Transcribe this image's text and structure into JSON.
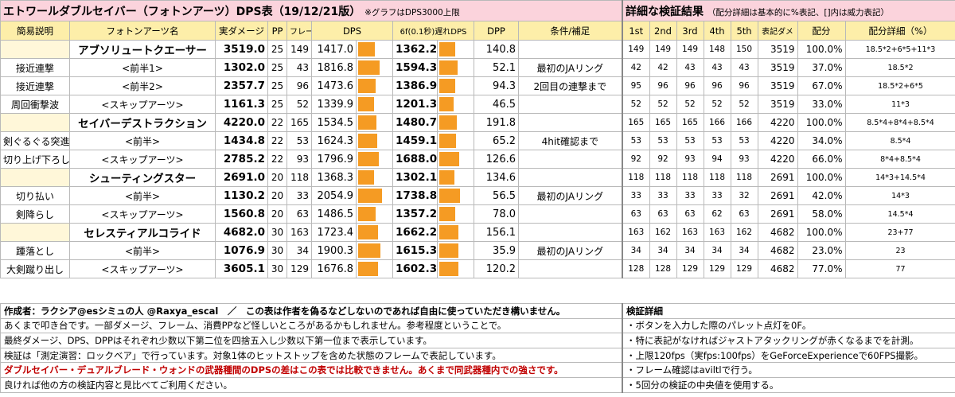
{
  "title": "エトワールダブルセイバー（フォトンアーツ）DPS表（19/12/21版）",
  "title_note": "※グラフはDPS3000上限",
  "side_title": "詳細な検証結果",
  "side_note": "（配分詳細は基本的に%表記、[]内は威力表記）",
  "headers": [
    "簡易説明",
    "フォトンアーツ名",
    "実ダメージ",
    "PP",
    "フレーム",
    "DPS",
    "6f(0.1秒)遅れDPS",
    "DPP",
    "条件/補足"
  ],
  "side_headers": [
    "1st",
    "2nd",
    "3rd",
    "4th",
    "5th",
    "表記ダメ",
    "配分",
    "配分詳細（%）"
  ],
  "bar_color": "#f59b23",
  "bar_cap": 3000,
  "rows": [
    {
      "desc": "",
      "name": "アブソリュートクエーサー",
      "main": true,
      "dmg": "3519.0",
      "pp": "25",
      "frame": "149",
      "dps": "1417.0",
      "dps_val": 1417.0,
      "dps6": "1362.2",
      "dps6_val": 1362.2,
      "dpp": "140.8",
      "note": "",
      "t1": "149",
      "t2": "149",
      "t3": "149",
      "t4": "148",
      "t5": "150",
      "disp": "3519",
      "ratio": "100.0%",
      "detail": "18.5*2+6*5+11*3"
    },
    {
      "desc": "接近連撃",
      "name": "<前半1>",
      "main": false,
      "dmg": "1302.0",
      "pp": "25",
      "frame": "43",
      "dps": "1816.8",
      "dps_val": 1816.8,
      "dps6": "1594.3",
      "dps6_val": 1594.3,
      "dpp": "52.1",
      "note": "最初のJAリング",
      "t1": "42",
      "t2": "42",
      "t3": "43",
      "t4": "43",
      "t5": "43",
      "disp": "3519",
      "ratio": "37.0%",
      "detail": "18.5*2"
    },
    {
      "desc": "接近連撃",
      "name": "<前半2>",
      "main": false,
      "dmg": "2357.7",
      "pp": "25",
      "frame": "96",
      "dps": "1473.6",
      "dps_val": 1473.6,
      "dps6": "1386.9",
      "dps6_val": 1386.9,
      "dpp": "94.3",
      "note": "2回目の連撃まで",
      "t1": "95",
      "t2": "96",
      "t3": "96",
      "t4": "96",
      "t5": "96",
      "disp": "3519",
      "ratio": "67.0%",
      "detail": "18.5*2+6*5"
    },
    {
      "desc": "周回衝撃波",
      "name": "<スキップアーツ>",
      "main": false,
      "dmg": "1161.3",
      "pp": "25",
      "frame": "52",
      "dps": "1339.9",
      "dps_val": 1339.9,
      "dps6": "1201.3",
      "dps6_val": 1201.3,
      "dpp": "46.5",
      "note": "",
      "t1": "52",
      "t2": "52",
      "t3": "52",
      "t4": "52",
      "t5": "52",
      "disp": "3519",
      "ratio": "33.0%",
      "detail": "11*3"
    },
    {
      "desc": "",
      "name": "セイバーデストラクション",
      "main": true,
      "dmg": "4220.0",
      "pp": "22",
      "frame": "165",
      "dps": "1534.5",
      "dps_val": 1534.5,
      "dps6": "1480.7",
      "dps6_val": 1480.7,
      "dpp": "191.8",
      "note": "",
      "t1": "165",
      "t2": "165",
      "t3": "165",
      "t4": "166",
      "t5": "166",
      "disp": "4220",
      "ratio": "100.0%",
      "detail": "8.5*4+8*4+8.5*4"
    },
    {
      "desc": "剣ぐるぐる突進",
      "name": "<前半>",
      "main": false,
      "dmg": "1434.8",
      "pp": "22",
      "frame": "53",
      "dps": "1624.3",
      "dps_val": 1624.3,
      "dps6": "1459.1",
      "dps6_val": 1459.1,
      "dpp": "65.2",
      "note": "4hit確認まで",
      "t1": "53",
      "t2": "53",
      "t3": "53",
      "t4": "53",
      "t5": "53",
      "disp": "4220",
      "ratio": "34.0%",
      "detail": "8.5*4"
    },
    {
      "desc": "切り上げ下ろし",
      "name": "<スキップアーツ>",
      "main": false,
      "dmg": "2785.2",
      "pp": "22",
      "frame": "93",
      "dps": "1796.9",
      "dps_val": 1796.9,
      "dps6": "1688.0",
      "dps6_val": 1688.0,
      "dpp": "126.6",
      "note": "",
      "t1": "92",
      "t2": "92",
      "t3": "93",
      "t4": "94",
      "t5": "93",
      "disp": "4220",
      "ratio": "66.0%",
      "detail": "8*4+8.5*4"
    },
    {
      "desc": "",
      "name": "シューティングスター",
      "main": true,
      "dmg": "2691.0",
      "pp": "20",
      "frame": "118",
      "dps": "1368.3",
      "dps_val": 1368.3,
      "dps6": "1302.1",
      "dps6_val": 1302.1,
      "dpp": "134.6",
      "note": "",
      "t1": "118",
      "t2": "118",
      "t3": "118",
      "t4": "118",
      "t5": "118",
      "disp": "2691",
      "ratio": "100.0%",
      "detail": "14*3+14.5*4"
    },
    {
      "desc": "切り払い",
      "name": "<前半>",
      "main": false,
      "dmg": "1130.2",
      "pp": "20",
      "frame": "33",
      "dps": "2054.9",
      "dps_val": 2054.9,
      "dps6": "1738.8",
      "dps6_val": 1738.8,
      "dpp": "56.5",
      "note": "最初のJAリング",
      "t1": "33",
      "t2": "33",
      "t3": "33",
      "t4": "33",
      "t5": "32",
      "disp": "2691",
      "ratio": "42.0%",
      "detail": "14*3"
    },
    {
      "desc": "剣降らし",
      "name": "<スキップアーツ>",
      "main": false,
      "dmg": "1560.8",
      "pp": "20",
      "frame": "63",
      "dps": "1486.5",
      "dps_val": 1486.5,
      "dps6": "1357.2",
      "dps6_val": 1357.2,
      "dpp": "78.0",
      "note": "",
      "t1": "63",
      "t2": "63",
      "t3": "63",
      "t4": "62",
      "t5": "63",
      "disp": "2691",
      "ratio": "58.0%",
      "detail": "14.5*4"
    },
    {
      "desc": "",
      "name": "セレスティアルコライド",
      "main": true,
      "dmg": "4682.0",
      "pp": "30",
      "frame": "163",
      "dps": "1723.4",
      "dps_val": 1723.4,
      "dps6": "1662.2",
      "dps6_val": 1662.2,
      "dpp": "156.1",
      "note": "",
      "t1": "163",
      "t2": "162",
      "t3": "163",
      "t4": "163",
      "t5": "162",
      "disp": "4682",
      "ratio": "100.0%",
      "detail": "23+77"
    },
    {
      "desc": "踵落とし",
      "name": "<前半>",
      "main": false,
      "dmg": "1076.9",
      "pp": "30",
      "frame": "34",
      "dps": "1900.3",
      "dps_val": 1900.3,
      "dps6": "1615.3",
      "dps6_val": 1615.3,
      "dpp": "35.9",
      "note": "最初のJAリング",
      "t1": "34",
      "t2": "34",
      "t3": "34",
      "t4": "34",
      "t5": "34",
      "disp": "4682",
      "ratio": "23.0%",
      "detail": "23"
    },
    {
      "desc": "大剣蹴り出し",
      "name": "<スキップアーツ>",
      "main": false,
      "dmg": "3605.1",
      "pp": "30",
      "frame": "129",
      "dps": "1676.8",
      "dps_val": 1676.8,
      "dps6": "1602.3",
      "dps6_val": 1602.3,
      "dpp": "120.2",
      "note": "",
      "t1": "128",
      "t2": "128",
      "t3": "129",
      "t4": "129",
      "t5": "129",
      "disp": "4682",
      "ratio": "77.0%",
      "detail": "77"
    }
  ],
  "footer": {
    "credit": "作成者：ラクシア@esシミュの人 @Raxya_escal　／　この表は作者を偽るなどしないのであれば自由に使っていただき構いません。",
    "lines": [
      "あくまで叩き台です。一部ダメージ、フレーム、消費PPなど怪しいところがあるかもしれません。参考程度ということで。",
      "最終ダメージ、DPS、DPPはそれぞれ少数以下第二位を四捨五入し少数以下第一位まで表示しています。",
      "検証は「測定演習：ロックベア」で行っています。対象1体のヒットストップを含めた状態のフレームで表記しています。",
      "ダブルセイバー・デュアルブレード・ウォンドの武器種間のDPSの差はこの表では比較できません。あくまで同武器種内での強さです。",
      "良ければ他の方の検証内容と見比べてご利用ください。"
    ],
    "side_title": "検証詳細",
    "side_lines": [
      "・ボタンを入力した際のパレット点灯を0F。",
      "・特に表記がなければジャストアタックリングが赤くなるまでを計測。",
      "・上限120fps（実fps:100fps）をGeForceExperienceで60FPS撮影。",
      "・フレーム確認はaviltlで行う。",
      "・5回分の検証の中央値を使用する。"
    ]
  }
}
